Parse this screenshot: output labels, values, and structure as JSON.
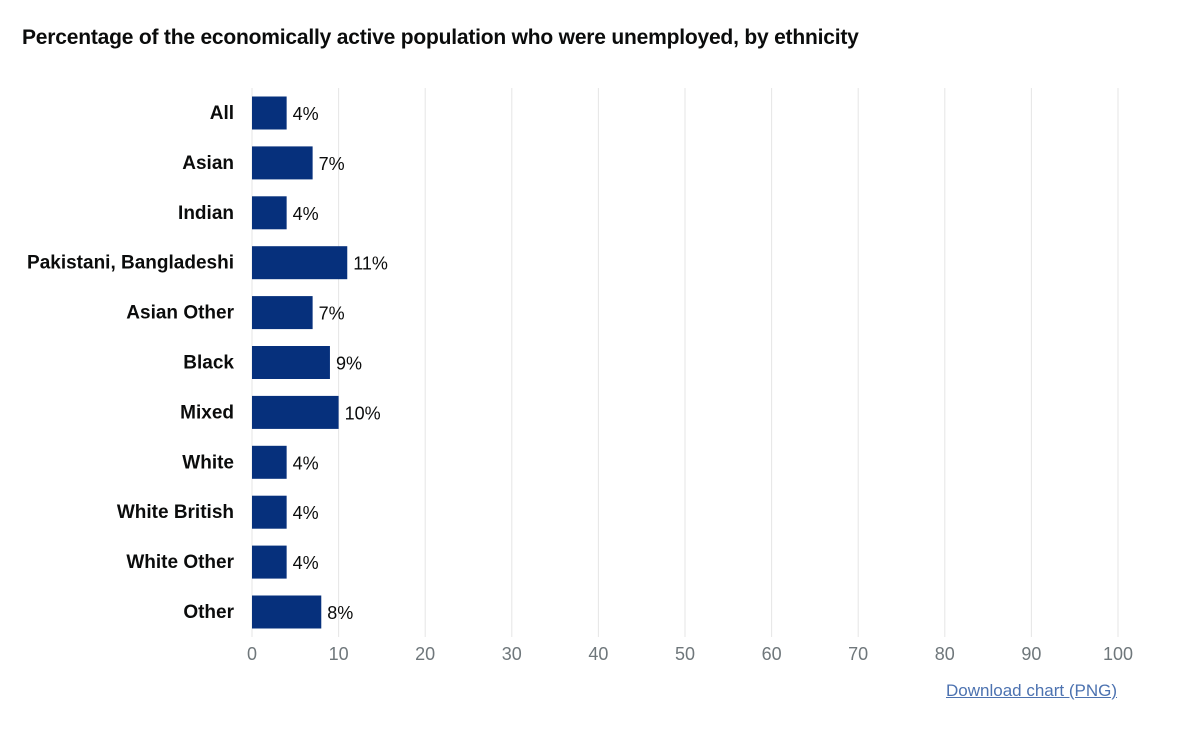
{
  "chart_data": {
    "type": "bar",
    "orientation": "horizontal",
    "title": "Percentage of the economically active population who were unemployed, by ethnicity",
    "categories": [
      "All",
      "Asian",
      "Indian",
      "Pakistani, Bangladeshi",
      "Asian Other",
      "Black",
      "Mixed",
      "White",
      "White British",
      "White Other",
      "Other"
    ],
    "values": [
      4,
      7,
      4,
      11,
      7,
      9,
      10,
      4,
      4,
      4,
      8
    ],
    "value_labels": [
      "4%",
      "7%",
      "4%",
      "11%",
      "7%",
      "9%",
      "10%",
      "4%",
      "4%",
      "4%",
      "8%"
    ],
    "xticks": [
      0,
      10,
      20,
      30,
      40,
      50,
      60,
      70,
      80,
      90,
      100
    ],
    "xlim": [
      0,
      100
    ],
    "xlabel": "",
    "ylabel": "",
    "grid": true,
    "bar_color": "#06307c",
    "grid_color": "#e5e5e5"
  },
  "links": {
    "download_label": "Download chart (PNG)"
  }
}
